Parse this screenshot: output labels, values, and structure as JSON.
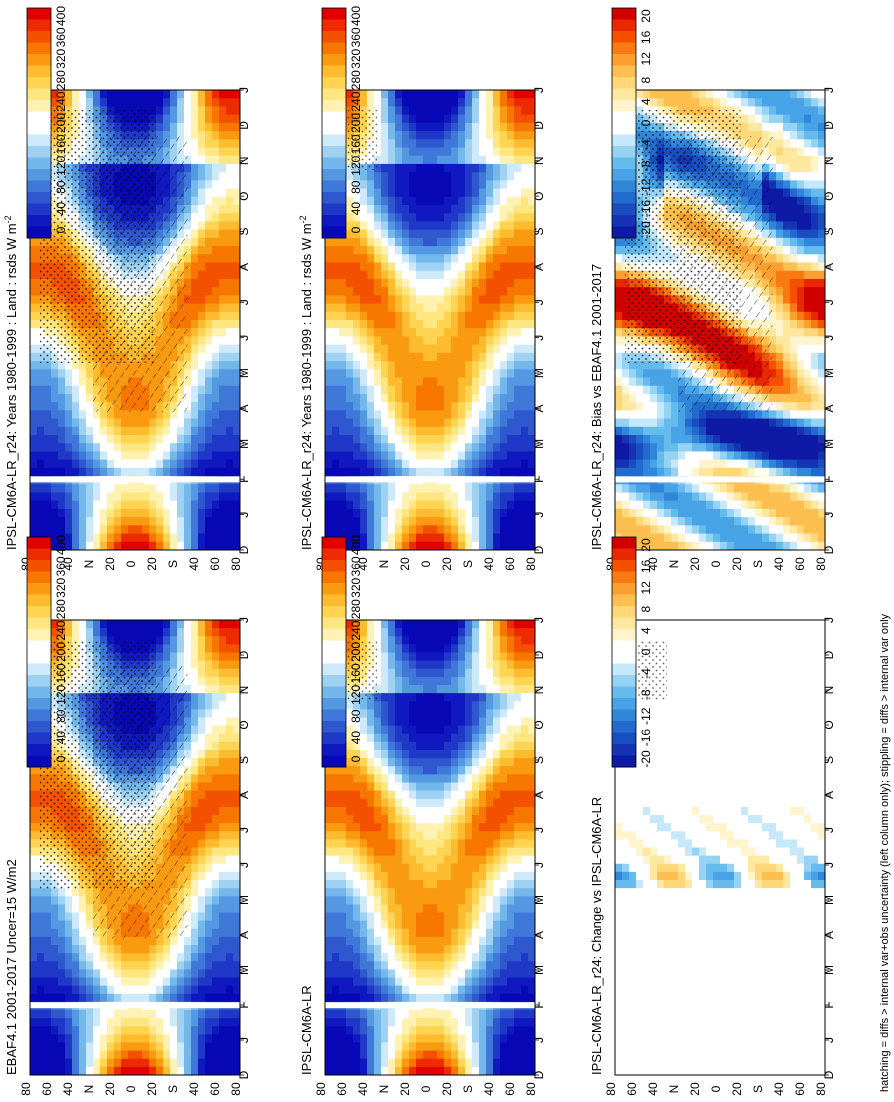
{
  "footnote": "hatching = diffs > internal var+obs uncertainty (left column only); stippling = diffs > internal var only",
  "colors": {
    "abs_scale": [
      "#e00000",
      "#ee2a00",
      "#f35000",
      "#f77600",
      "#fa9a10",
      "#fdbb30",
      "#fed452",
      "#fee680",
      "#fff2b2",
      "#ffffff",
      "#ffffff",
      "#cde9fa",
      "#9fd2f2",
      "#74b7ea",
      "#5598e2",
      "#3f78d8",
      "#2f58cf",
      "#2038c7",
      "#1018bf",
      "#0808b6"
    ],
    "diff_scale": [
      "#d00000",
      "#e82800",
      "#f45000",
      "#f87a10",
      "#fba030",
      "#fdc050",
      "#fed878",
      "#fee8a0",
      "#fff4cc",
      "#ffffff",
      "#ffffff",
      "#c6e8fb",
      "#96d2f4",
      "#66bbed",
      "#48a2e6",
      "#3286da",
      "#226acd",
      "#1a4ec0",
      "#1434b3",
      "#0e1aa6"
    ]
  },
  "month_labels": [
    "D",
    "J",
    "F",
    "M",
    "A",
    "M",
    "J",
    "J",
    "A",
    "S",
    "O",
    "N",
    "D",
    "J"
  ],
  "lat_labels": [
    "80",
    "60",
    "40",
    "N",
    "20",
    "0",
    "20",
    "S",
    "40",
    "60",
    "80"
  ],
  "panels": [
    {
      "title": "IPSL-CM6A-LR_r24: Years 1980-1999 : Land : rsds W m",
      "title_sup": "-2",
      "kind": "abs",
      "hatch": true
    },
    {
      "title": "IPSL-CM6A-LR_r24: Years 1980-1999 : Land : rsds W m",
      "title_sup": "-2",
      "kind": "abs",
      "hatch": false
    },
    {
      "title": "EBAF4.1 2001-2017 Uncer=15 W/m2",
      "title_sup": "",
      "kind": "abs",
      "hatch": true
    },
    {
      "title": "IPSL-CM6A-LR",
      "title_sup": "",
      "kind": "abs",
      "hatch": false
    },
    {
      "title": "IPSL-CM6A-LR_r24: Bias vs EBAF4.1 2001-2017",
      "title_sup": "",
      "kind": "bias",
      "hatch": true
    },
    {
      "title": "IPSL-CM6A-LR_r24: Change vs IPSL-CM6A-LR",
      "title_sup": "",
      "kind": "change",
      "hatch": false
    }
  ],
  "chart_data": [
    {
      "type": "heatmap",
      "title": "IPSL-CM6A-LR_r24: Years 1980-1999 : Land : rsds W m-2",
      "xlabel": "",
      "ylabel": "",
      "x_ticks": [
        "D",
        "J",
        "F",
        "M",
        "A",
        "M",
        "J",
        "J",
        "A",
        "S",
        "O",
        "N",
        "D",
        "J"
      ],
      "y_ticks": [
        "80",
        "60",
        "40",
        "N",
        "20",
        "0",
        "20",
        "S",
        "40",
        "60",
        "80"
      ],
      "colorbar": {
        "ticks": [
          "400",
          "360",
          "320",
          "280",
          "240",
          "200",
          "160",
          "120",
          "80",
          "40",
          "0"
        ],
        "range": [
          0,
          400
        ]
      }
    },
    {
      "type": "heatmap",
      "title": "IPSL-CM6A-LR_r24: Years 1980-1999 : Land : rsds W m-2",
      "xlabel": "",
      "ylabel": "",
      "x_ticks": [
        "D",
        "J",
        "F",
        "M",
        "A",
        "M",
        "J",
        "J",
        "A",
        "S",
        "O",
        "N",
        "D",
        "J"
      ],
      "y_ticks": [
        "80",
        "60",
        "40",
        "N",
        "20",
        "0",
        "20",
        "S",
        "40",
        "60",
        "80"
      ],
      "colorbar": {
        "ticks": [
          "400",
          "360",
          "320",
          "280",
          "240",
          "200",
          "160",
          "120",
          "80",
          "40",
          "0"
        ],
        "range": [
          0,
          400
        ]
      }
    },
    {
      "type": "heatmap",
      "title": "EBAF4.1 2001-2017 Uncer=15 W/m2",
      "xlabel": "",
      "ylabel": "",
      "x_ticks": [
        "D",
        "J",
        "F",
        "M",
        "A",
        "M",
        "J",
        "J",
        "A",
        "S",
        "O",
        "N",
        "D",
        "J"
      ],
      "y_ticks": [
        "80",
        "60",
        "40",
        "N",
        "20",
        "0",
        "20",
        "S",
        "40",
        "60",
        "80"
      ],
      "colorbar": {
        "ticks": [
          "400",
          "360",
          "320",
          "280",
          "240",
          "200",
          "160",
          "120",
          "80",
          "40",
          "0"
        ],
        "range": [
          0,
          400
        ]
      }
    },
    {
      "type": "heatmap",
      "title": "IPSL-CM6A-LR",
      "xlabel": "",
      "ylabel": "",
      "x_ticks": [
        "D",
        "J",
        "F",
        "M",
        "A",
        "M",
        "J",
        "J",
        "A",
        "S",
        "O",
        "N",
        "D",
        "J"
      ],
      "y_ticks": [
        "80",
        "60",
        "40",
        "N",
        "20",
        "0",
        "20",
        "S",
        "40",
        "60",
        "80"
      ],
      "colorbar": {
        "ticks": [
          "400",
          "360",
          "320",
          "280",
          "240",
          "200",
          "160",
          "120",
          "80",
          "40",
          "0"
        ],
        "range": [
          0,
          400
        ]
      }
    },
    {
      "type": "heatmap",
      "title": "IPSL-CM6A-LR_r24: Bias vs EBAF4.1 2001-2017",
      "xlabel": "",
      "ylabel": "",
      "x_ticks": [
        "D",
        "J",
        "F",
        "M",
        "A",
        "M",
        "J",
        "J",
        "A",
        "S",
        "O",
        "N",
        "D",
        "J"
      ],
      "y_ticks": [
        "80",
        "60",
        "40",
        "N",
        "20",
        "0",
        "20",
        "S",
        "40",
        "60",
        "80"
      ],
      "colorbar": {
        "ticks": [
          "20",
          "16",
          "12",
          "8",
          "4",
          "0",
          "-4",
          "-8",
          "-12",
          "-16",
          "-20"
        ],
        "range": [
          -20,
          20
        ]
      }
    },
    {
      "type": "heatmap",
      "title": "IPSL-CM6A-LR_r24: Change vs IPSL-CM6A-LR",
      "xlabel": "",
      "ylabel": "",
      "x_ticks": [
        "D",
        "J",
        "F",
        "M",
        "A",
        "M",
        "J",
        "J",
        "A",
        "S",
        "O",
        "N",
        "D",
        "J"
      ],
      "y_ticks": [
        "80",
        "60",
        "40",
        "N",
        "20",
        "0",
        "20",
        "S",
        "40",
        "60",
        "80"
      ],
      "colorbar": {
        "ticks": [
          "20",
          "16",
          "12",
          "8",
          "4",
          "0",
          "-4",
          "-8",
          "-12",
          "-16",
          "-20"
        ],
        "range": [
          -20,
          20
        ]
      }
    }
  ]
}
